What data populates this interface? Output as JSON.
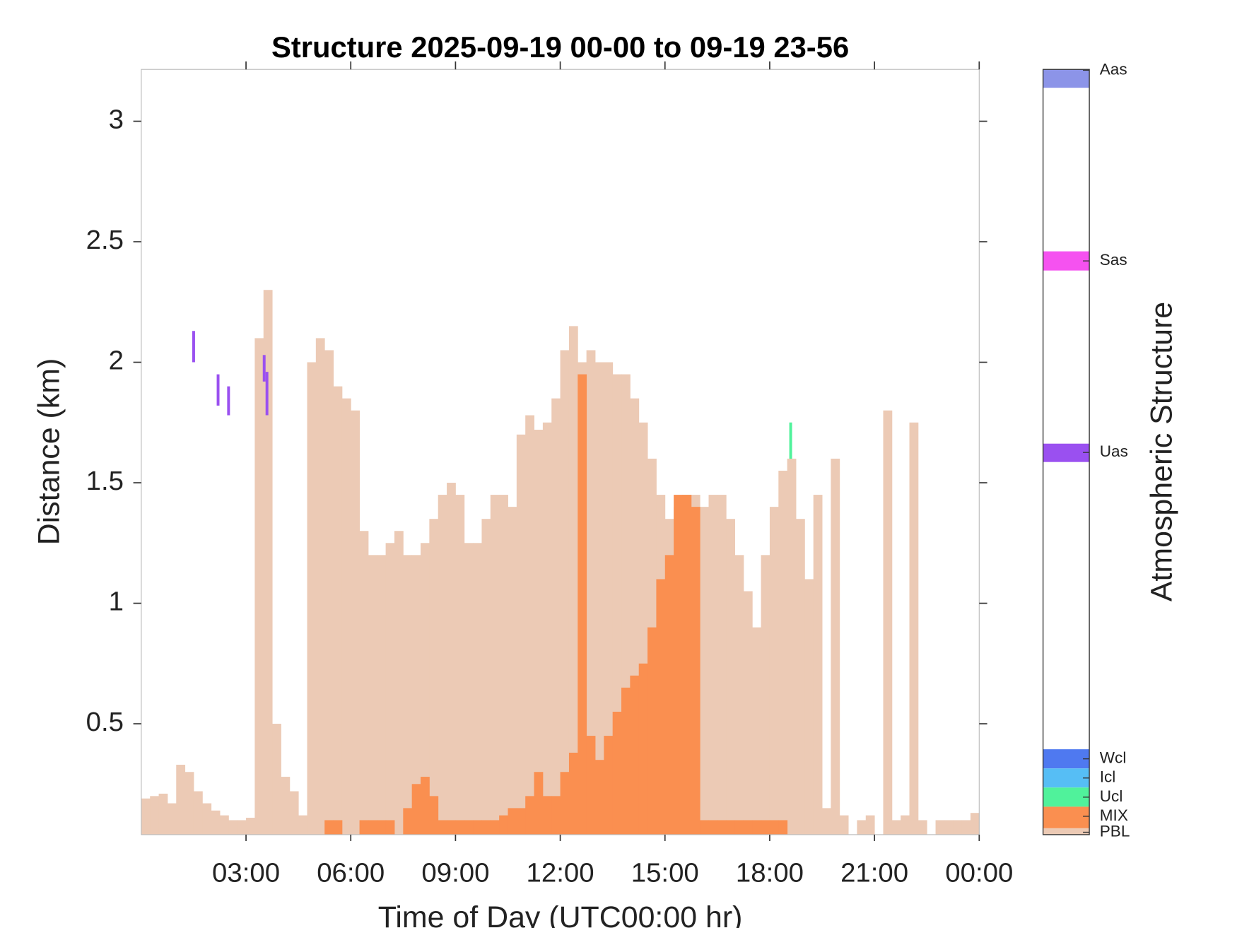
{
  "chart_data": {
    "type": "bar",
    "title": "Structure 2025-09-19 00-00 to 09-19 23-56",
    "xlabel": "Time of Day (UTC00:00 hr)",
    "ylabel": "Distance (km)",
    "colorbar_label": "Atmospheric Structure",
    "xlim": [
      0,
      24
    ],
    "ylim": [
      0.04,
      3.215
    ],
    "bin_width": 0.25,
    "xticks": [
      {
        "value": 3,
        "label": "03:00"
      },
      {
        "value": 6,
        "label": "06:00"
      },
      {
        "value": 9,
        "label": "09:00"
      },
      {
        "value": 12,
        "label": "12:00"
      },
      {
        "value": 15,
        "label": "15:00"
      },
      {
        "value": 18,
        "label": "18:00"
      },
      {
        "value": 21,
        "label": "21:00"
      },
      {
        "value": 24,
        "label": "00:00"
      }
    ],
    "yticks": [
      0.5,
      1,
      1.5,
      2,
      2.5,
      3
    ],
    "x": [
      0,
      0.25,
      0.5,
      0.75,
      1,
      1.25,
      1.5,
      1.75,
      2,
      2.25,
      2.5,
      2.75,
      3,
      3.25,
      3.5,
      3.75,
      4,
      4.25,
      4.5,
      4.75,
      5,
      5.25,
      5.5,
      5.75,
      6,
      6.25,
      6.5,
      6.75,
      7,
      7.25,
      7.5,
      7.75,
      8,
      8.25,
      8.5,
      8.75,
      9,
      9.25,
      9.5,
      9.75,
      10,
      10.25,
      10.5,
      10.75,
      11,
      11.25,
      11.5,
      11.75,
      12,
      12.25,
      12.5,
      12.75,
      13,
      13.25,
      13.5,
      13.75,
      14,
      14.25,
      14.5,
      14.75,
      15,
      15.25,
      15.5,
      15.75,
      16,
      16.25,
      16.5,
      16.75,
      17,
      17.25,
      17.5,
      17.75,
      18,
      18.25,
      18.5,
      18.75,
      19,
      19.25,
      19.5,
      19.75,
      20,
      20.25,
      20.5,
      20.75,
      21,
      21.25,
      21.5,
      21.75,
      22,
      22.25,
      22.5,
      22.75,
      23,
      23.25,
      23.5,
      23.75
    ],
    "series": [
      {
        "name": "PBL",
        "color": "#eccab5",
        "values": [
          0.19,
          0.2,
          0.21,
          0.17,
          0.33,
          0.3,
          0.22,
          0.17,
          0.14,
          0.12,
          0.1,
          0.1,
          0.11,
          2.1,
          2.3,
          0.5,
          0.28,
          0.22,
          0.12,
          2.0,
          2.1,
          2.05,
          1.9,
          1.85,
          1.8,
          1.3,
          1.2,
          1.2,
          1.25,
          1.3,
          1.2,
          1.2,
          1.25,
          1.35,
          1.45,
          1.5,
          1.45,
          1.25,
          1.25,
          1.35,
          1.45,
          1.45,
          1.4,
          1.7,
          1.78,
          1.72,
          1.75,
          1.85,
          2.05,
          2.15,
          2.0,
          2.05,
          2.0,
          2.0,
          1.95,
          1.95,
          1.85,
          1.75,
          1.6,
          1.45,
          1.35,
          1.4,
          1.45,
          1.45,
          1.4,
          1.45,
          1.45,
          1.35,
          1.2,
          1.05,
          0.9,
          1.2,
          1.4,
          1.55,
          1.6,
          1.35,
          1.1,
          1.45,
          0.15,
          1.6,
          0.12,
          null,
          0.1,
          0.12,
          null,
          1.8,
          0.1,
          0.12,
          1.75,
          0.1,
          null,
          0.1,
          0.1,
          0.1,
          0.1,
          0.13
        ]
      },
      {
        "name": "MIX",
        "color": "#fa8f50",
        "values": [
          null,
          null,
          null,
          null,
          null,
          null,
          null,
          null,
          null,
          null,
          null,
          null,
          null,
          null,
          null,
          null,
          null,
          null,
          null,
          null,
          null,
          0.1,
          0.1,
          null,
          null,
          0.1,
          0.1,
          0.1,
          0.1,
          null,
          0.15,
          0.25,
          0.28,
          0.2,
          0.1,
          0.1,
          0.1,
          0.1,
          0.1,
          0.1,
          0.1,
          0.12,
          0.15,
          0.15,
          0.2,
          0.3,
          0.2,
          0.2,
          0.3,
          0.38,
          1.95,
          0.45,
          0.35,
          0.45,
          0.55,
          0.65,
          0.7,
          0.75,
          0.9,
          1.1,
          1.2,
          1.45,
          1.45,
          1.4,
          0.1,
          0.1,
          0.1,
          0.1,
          0.1,
          0.1,
          0.1,
          0.1,
          0.1,
          0.1,
          null,
          null,
          null,
          null,
          null,
          null,
          null,
          null,
          null,
          null,
          null,
          null,
          null,
          null,
          null,
          null,
          null,
          null,
          null,
          null,
          null,
          null
        ]
      }
    ],
    "segments": [
      {
        "name": "Uas",
        "x": 1.5,
        "y": [
          2.0,
          2.13
        ]
      },
      {
        "name": "Uas",
        "x": 2.2,
        "y": [
          1.82,
          1.95
        ]
      },
      {
        "name": "Uas",
        "x": 2.5,
        "y": [
          1.78,
          1.9
        ]
      },
      {
        "name": "Uas",
        "x": 3.52,
        "y": [
          1.92,
          2.03
        ]
      },
      {
        "name": "Uas",
        "x": 3.6,
        "y": [
          1.78,
          1.96
        ]
      },
      {
        "name": "Ucl",
        "x": 18.6,
        "y": [
          1.6,
          1.75
        ]
      }
    ],
    "legend": [
      {
        "name": "Aas",
        "color": "#8c94e8"
      },
      {
        "name": "Sas",
        "color": "#f552f0"
      },
      {
        "name": "Uas",
        "color": "#9a50f0"
      },
      {
        "name": "Wcl",
        "color": "#4f79f0"
      },
      {
        "name": "Icl",
        "color": "#56bef5"
      },
      {
        "name": "Ucl",
        "color": "#50f29b"
      },
      {
        "name": "MIX",
        "color": "#fa8f50"
      },
      {
        "name": "PBL",
        "color": "#eccab5"
      }
    ]
  }
}
